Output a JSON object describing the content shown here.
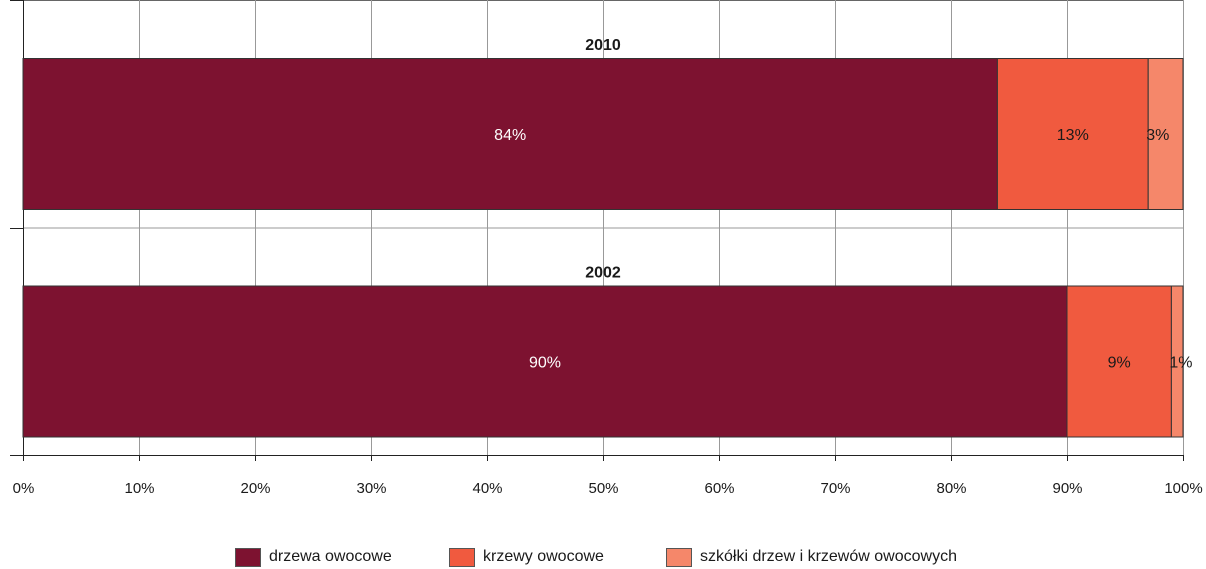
{
  "chart_data": {
    "type": "bar",
    "orientation": "horizontal",
    "stacked": true,
    "categories": [
      "2010",
      "2002"
    ],
    "series": [
      {
        "name": "drzewa owocowe",
        "color": "#7d1230",
        "values": [
          84,
          90
        ],
        "labels": [
          "84%",
          "90%"
        ]
      },
      {
        "name": "krzewy owocowe",
        "color": "#f05a3f",
        "values": [
          13,
          9
        ],
        "labels": [
          "13%",
          "9%"
        ]
      },
      {
        "name": "szkółki drzew i krzewów owocowych",
        "color": "#f5876a",
        "values": [
          3,
          1
        ],
        "labels": [
          "3%",
          "1%"
        ]
      }
    ],
    "xlim": [
      0,
      100
    ],
    "xticks": [
      "0%",
      "10%",
      "20%",
      "30%",
      "40%",
      "50%",
      "60%",
      "70%",
      "80%",
      "90%",
      "100%"
    ],
    "grid": true,
    "legend_position": "bottom"
  }
}
